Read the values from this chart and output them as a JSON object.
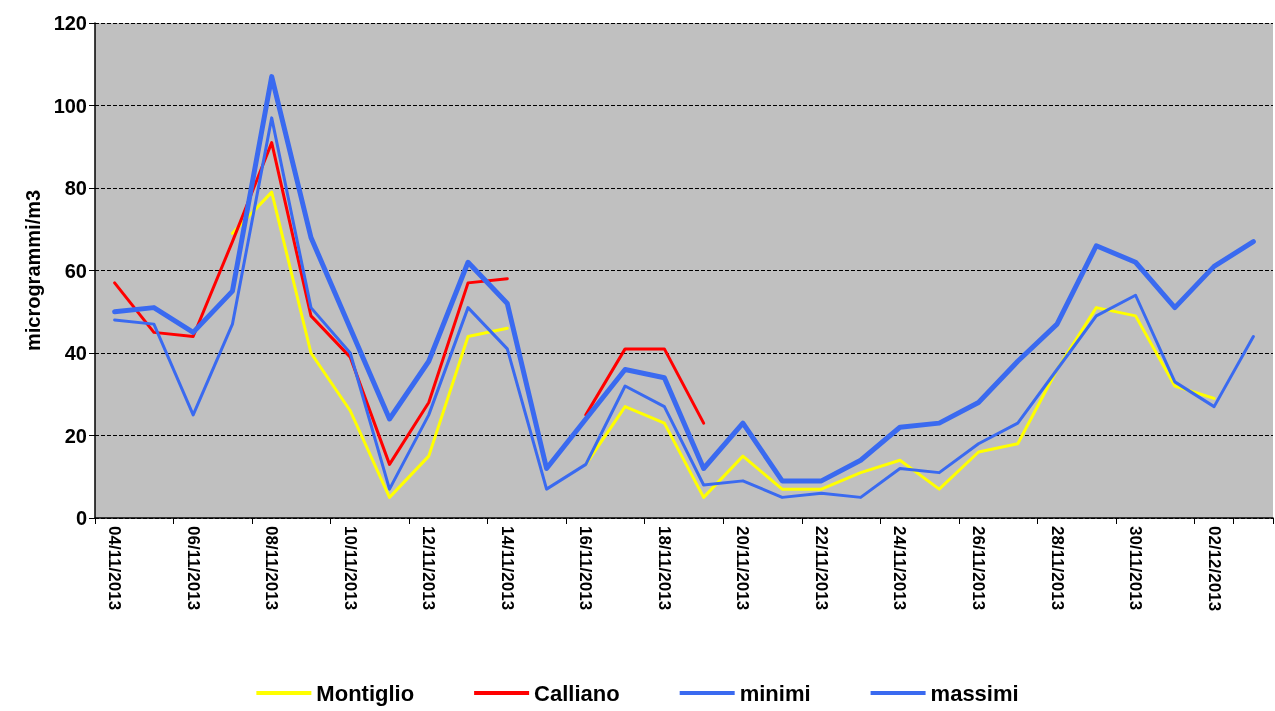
{
  "chart_data": {
    "type": "line",
    "ylabel": "microgrammi/m3",
    "categories": [
      "04/11/2013",
      null,
      "06/11/2013",
      null,
      "08/11/2013",
      null,
      "10/11/2013",
      null,
      "12/11/2013",
      null,
      "14/11/2013",
      null,
      "16/11/2013",
      null,
      "18/11/2013",
      null,
      "20/11/2013",
      null,
      "22/11/2013",
      null,
      "24/11/2013",
      null,
      "26/11/2013",
      null,
      "28/11/2013",
      null,
      "30/11/2013",
      null,
      "02/12/2013",
      null
    ],
    "series": [
      {
        "name": "Montiglio",
        "color": "#ffff00",
        "values": [
          null,
          null,
          null,
          69,
          79,
          40,
          26,
          5,
          15,
          44,
          46,
          null,
          13,
          27,
          23,
          5,
          15,
          7,
          7,
          11,
          14,
          7,
          16,
          18,
          36,
          51,
          49,
          32,
          29,
          null
        ]
      },
      {
        "name": "Calliano",
        "color": "#ff0000",
        "values": [
          57,
          45,
          44,
          67,
          91,
          49,
          39,
          13,
          28,
          57,
          58,
          null,
          25,
          41,
          41,
          23,
          null,
          null,
          null,
          null,
          null,
          null,
          null,
          null,
          null,
          null,
          null,
          null,
          null,
          null
        ]
      },
      {
        "name": "minimi",
        "color": "#3a6af0",
        "values": [
          48,
          47,
          25,
          47,
          97,
          51,
          40,
          7,
          25,
          51,
          41,
          7,
          13,
          32,
          27,
          8,
          9,
          5,
          6,
          5,
          12,
          11,
          18,
          23,
          36,
          49,
          54,
          33,
          27,
          44
        ]
      },
      {
        "name": "massimi",
        "color": "#3a6af0",
        "values": [
          50,
          51,
          45,
          55,
          107,
          68,
          46,
          24,
          38,
          62,
          52,
          12,
          24,
          36,
          34,
          12,
          23,
          9,
          9,
          14,
          22,
          23,
          28,
          38,
          47,
          66,
          62,
          51,
          61,
          67
        ]
      }
    ],
    "ylim": [
      0,
      120
    ],
    "yticks": [
      0,
      20,
      40,
      60,
      80,
      100,
      120
    ],
    "grid": "y",
    "legend": "bottom",
    "marker": "none",
    "line_style": "solid"
  }
}
